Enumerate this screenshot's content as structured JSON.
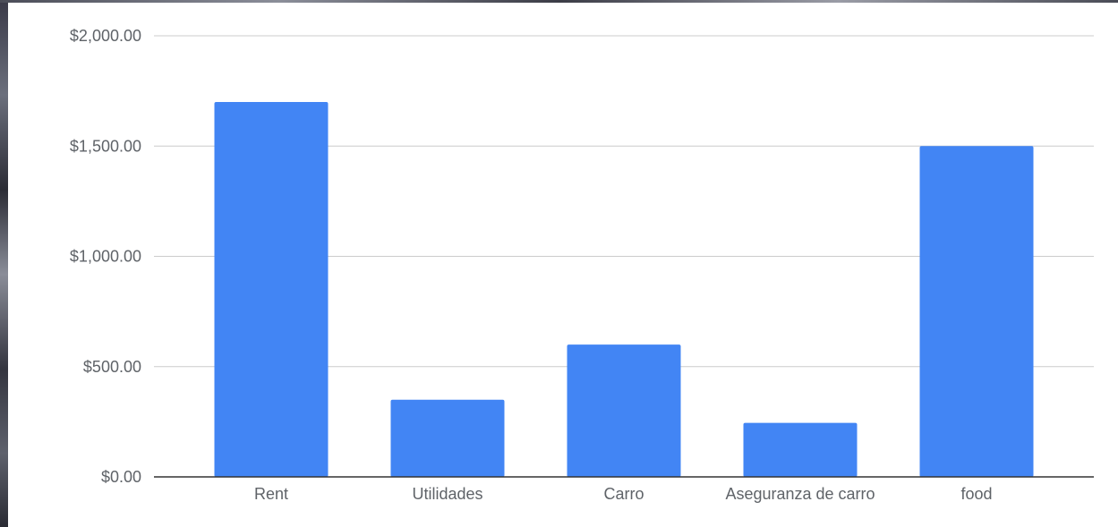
{
  "chart_data": {
    "type": "bar",
    "categories": [
      "Rent",
      "Utilidades",
      "Carro",
      "Aseguranza de carro",
      "food"
    ],
    "values": [
      1700,
      350,
      600,
      245,
      1500
    ],
    "ylim": [
      0,
      2000
    ],
    "yticks": [
      {
        "value": 0,
        "label": "$0.00"
      },
      {
        "value": 500,
        "label": "$500.00"
      },
      {
        "value": 1000,
        "label": "$1,000.00"
      },
      {
        "value": 1500,
        "label": "$1,500.00"
      },
      {
        "value": 2000,
        "label": "$2,000.00"
      }
    ],
    "title": "",
    "xlabel": "",
    "ylabel": "",
    "grid": true,
    "legend": "none",
    "bar_color": "#4285f4",
    "grid_color": "#cccccc",
    "axis_color": "#333333",
    "label_color": "#5f6368"
  }
}
